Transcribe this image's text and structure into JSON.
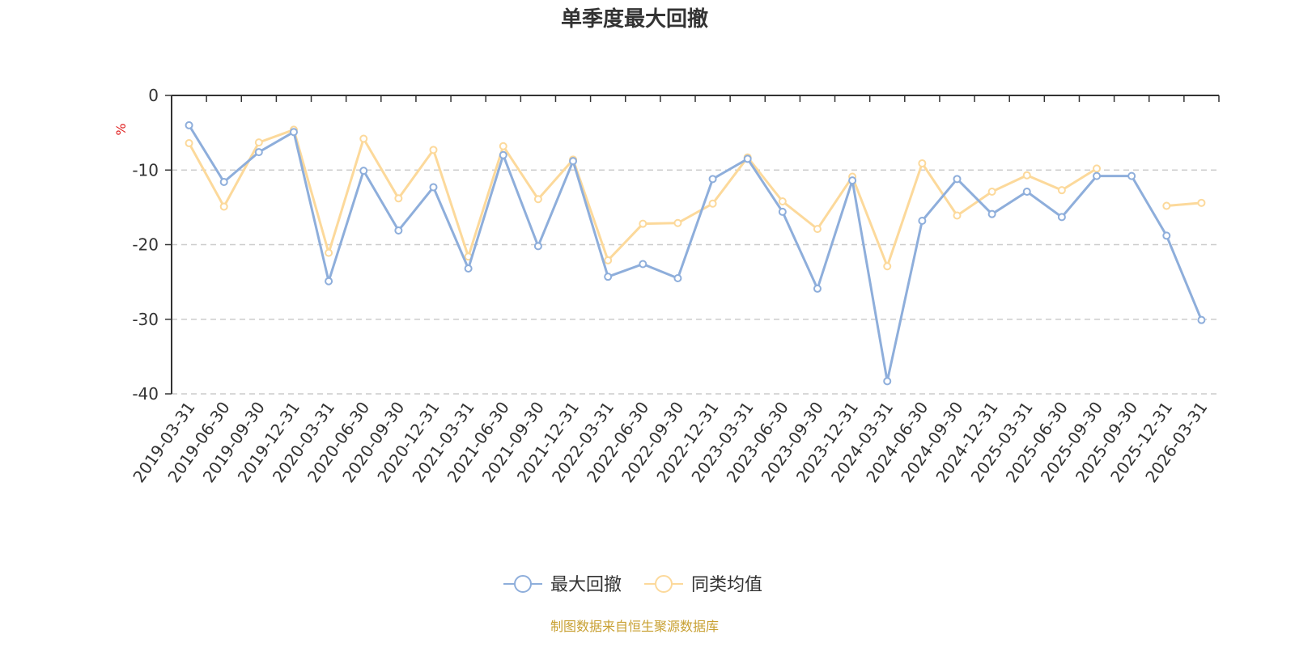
{
  "chart_data": {
    "type": "line",
    "title": "单季度最大回撤",
    "ylabel": "%",
    "xlabel": "",
    "ylim": [
      -40,
      0
    ],
    "yticks": [
      0,
      -10,
      -20,
      -30,
      -40
    ],
    "grid": true,
    "legend_position": "bottom-center",
    "categories": [
      "2019-03-31",
      "2019-06-30",
      "2019-09-30",
      "2019-12-31",
      "2020-03-31",
      "2020-06-30",
      "2020-09-30",
      "2020-12-31",
      "2021-03-31",
      "2021-06-30",
      "2021-09-30",
      "2021-12-31",
      "2022-03-31",
      "2022-06-30",
      "2022-09-30",
      "2022-12-31",
      "2023-03-31",
      "2023-06-30",
      "2023-09-30",
      "2023-12-31",
      "2024-03-31",
      "2024-06-30",
      "2024-09-30",
      "2024-12-31",
      "2025-03-31",
      "2025-06-30",
      "2025-09-30",
      "2025-09-30",
      "2025-12-31",
      "2026-03-31"
    ],
    "series": [
      {
        "name": "最大回撤",
        "color": "#8eaedb",
        "values": [
          -4.0,
          -11.6,
          -7.6,
          -4.9,
          -24.9,
          -10.1,
          -18.1,
          -12.3,
          -23.2,
          -8.0,
          -20.2,
          -8.8,
          -24.3,
          -22.6,
          -24.5,
          -11.2,
          -8.5,
          -15.6,
          -25.9,
          -11.4,
          -38.3,
          -16.8,
          -11.2,
          -15.9,
          -12.9,
          -16.3,
          -10.8,
          -10.8,
          -18.8,
          -30.1
        ]
      },
      {
        "name": "同类均值",
        "color": "#fcd99b",
        "values": [
          -6.4,
          -14.9,
          -6.3,
          -4.6,
          -21.1,
          -5.8,
          -13.8,
          -7.3,
          -21.6,
          -6.8,
          -13.9,
          -8.6,
          -22.1,
          -17.2,
          -17.1,
          -14.5,
          -8.3,
          -14.2,
          -17.9,
          -10.9,
          -22.9,
          -9.1,
          -16.1,
          -12.9,
          -10.7,
          -12.7,
          -9.8,
          null,
          -14.8,
          -14.4
        ]
      }
    ]
  },
  "source_text": "制图数据来自恒生聚源数据库"
}
